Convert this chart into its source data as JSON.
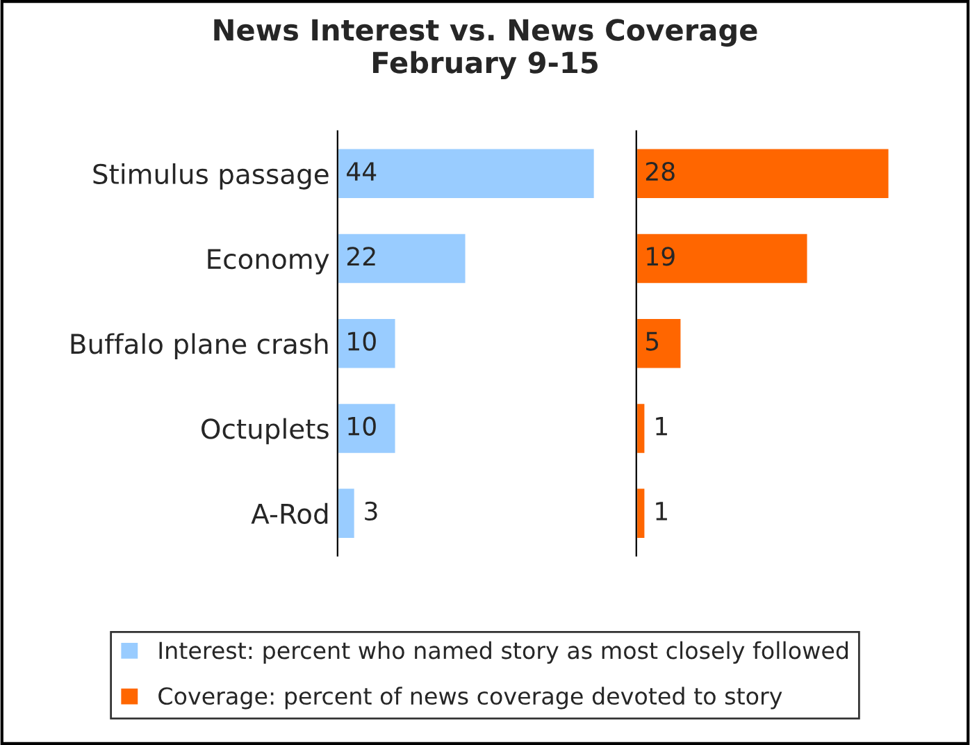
{
  "chart_data": [
    {
      "type": "bar",
      "orientation": "horizontal",
      "title": "News Interest vs. News Coverage\nFebruary 9-15",
      "categories": [
        "Stimulus passage",
        "Economy",
        "Buffalo plane crash",
        "Octuplets",
        "A-Rod"
      ],
      "series": [
        {
          "name": "Interest: percent who named story as most closely followed",
          "color": "#99ccff",
          "values": [
            44,
            22,
            10,
            10,
            3
          ]
        }
      ],
      "data_labels": true,
      "legend": "bottom",
      "tick_labels": "y",
      "grid": false
    },
    {
      "type": "bar",
      "orientation": "horizontal",
      "categories": [
        null,
        null,
        null,
        null,
        null
      ],
      "series": [
        {
          "name": "Coverage: percent of news coverage devoted to story",
          "color": "#ff6600",
          "values": [
            28,
            19,
            5,
            1,
            1
          ]
        }
      ],
      "data_labels": true,
      "legend": "bottom",
      "grid": false
    }
  ]
}
